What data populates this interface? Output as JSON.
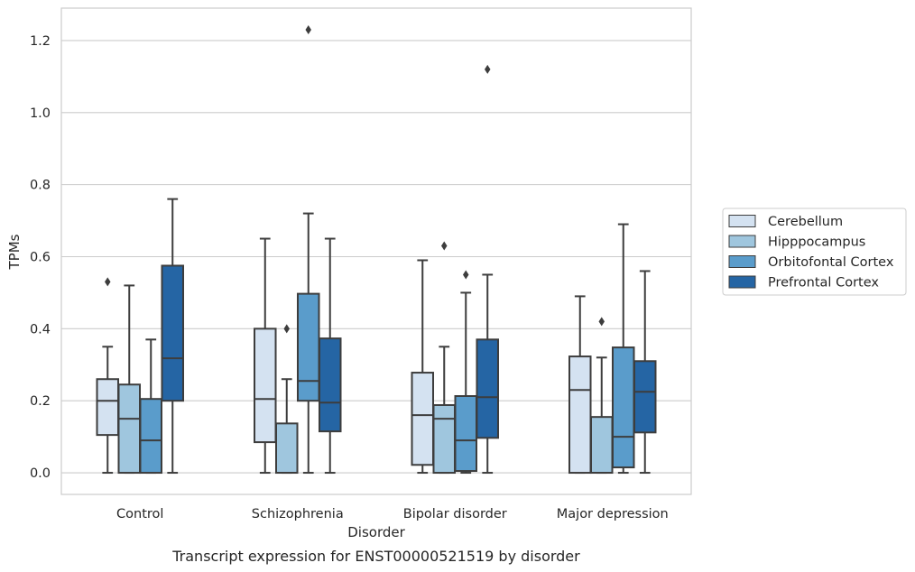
{
  "caption": "Transcript expression for ENST00000521519 by disorder",
  "chart_data": {
    "type": "box",
    "xlabel": "Disorder",
    "ylabel": "TPMs",
    "ylim": [
      -0.06,
      1.29
    ],
    "yticks": [
      0.0,
      0.2,
      0.4,
      0.6,
      0.8,
      1.0,
      1.2
    ],
    "ytick_labels": [
      "0.0",
      "0.2",
      "0.4",
      "0.6",
      "0.8",
      "1.0",
      "1.2"
    ],
    "grid": "horizontal",
    "legend_position": "right",
    "categories": [
      "Control",
      "Schizophrenia",
      "Bipolar disorder",
      "Major depression"
    ],
    "series": [
      {
        "name": "Cerebellum",
        "color": "#d4e2f1",
        "boxes": [
          {
            "whislo": 0.0,
            "q1": 0.105,
            "med": 0.2,
            "q3": 0.26,
            "whishi": 0.35,
            "fliers": [
              0.53
            ]
          },
          {
            "whislo": 0.0,
            "q1": 0.085,
            "med": 0.205,
            "q3": 0.4,
            "whishi": 0.65,
            "fliers": []
          },
          {
            "whislo": 0.0,
            "q1": 0.022,
            "med": 0.16,
            "q3": 0.278,
            "whishi": 0.59,
            "fliers": []
          },
          {
            "whislo": 0.0,
            "q1": 0.0,
            "med": 0.23,
            "q3": 0.323,
            "whishi": 0.49,
            "fliers": []
          }
        ]
      },
      {
        "name": "Hipppocampus",
        "color": "#9fc6de",
        "boxes": [
          {
            "whislo": 0.0,
            "q1": 0.0,
            "med": 0.15,
            "q3": 0.245,
            "whishi": 0.52,
            "fliers": []
          },
          {
            "whislo": 0.0,
            "q1": 0.0,
            "med": 0.0,
            "q3": 0.137,
            "whishi": 0.26,
            "fliers": [
              0.4
            ]
          },
          {
            "whislo": 0.0,
            "q1": 0.0,
            "med": 0.15,
            "q3": 0.188,
            "whishi": 0.35,
            "fliers": [
              0.63
            ]
          },
          {
            "whislo": 0.0,
            "q1": 0.0,
            "med": 0.0,
            "q3": 0.155,
            "whishi": 0.32,
            "fliers": [
              0.42
            ]
          }
        ]
      },
      {
        "name": "Orbitofontal Cortex",
        "color": "#5a9ccb",
        "boxes": [
          {
            "whislo": 0.0,
            "q1": 0.0,
            "med": 0.09,
            "q3": 0.205,
            "whishi": 0.37,
            "fliers": []
          },
          {
            "whislo": 0.0,
            "q1": 0.2,
            "med": 0.255,
            "q3": 0.497,
            "whishi": 0.72,
            "fliers": [
              1.23
            ]
          },
          {
            "whislo": 0.0,
            "q1": 0.005,
            "med": 0.09,
            "q3": 0.213,
            "whishi": 0.5,
            "fliers": [
              0.55
            ]
          },
          {
            "whislo": 0.0,
            "q1": 0.015,
            "med": 0.1,
            "q3": 0.348,
            "whishi": 0.69,
            "fliers": []
          }
        ]
      },
      {
        "name": "Prefrontal Cortex",
        "color": "#2565a4",
        "boxes": [
          {
            "whislo": 0.0,
            "q1": 0.2,
            "med": 0.318,
            "q3": 0.575,
            "whishi": 0.76,
            "fliers": []
          },
          {
            "whislo": 0.0,
            "q1": 0.115,
            "med": 0.195,
            "q3": 0.373,
            "whishi": 0.65,
            "fliers": []
          },
          {
            "whislo": 0.0,
            "q1": 0.097,
            "med": 0.21,
            "q3": 0.37,
            "whishi": 0.55,
            "fliers": [
              1.12
            ]
          },
          {
            "whislo": 0.0,
            "q1": 0.112,
            "med": 0.225,
            "q3": 0.31,
            "whishi": 0.56,
            "fliers": []
          }
        ]
      }
    ]
  }
}
